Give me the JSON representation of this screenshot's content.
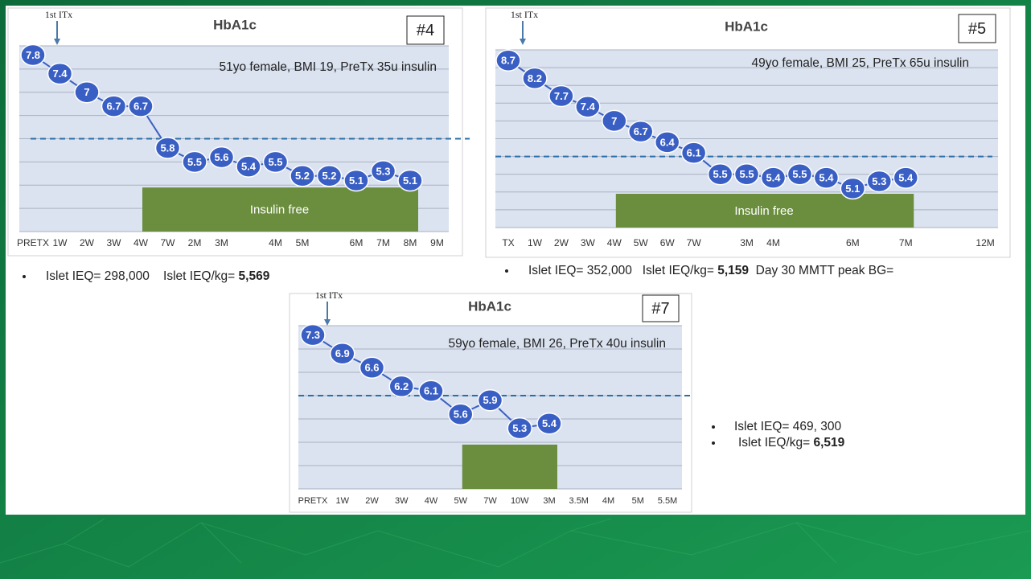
{
  "chart_data": [
    {
      "type": "line",
      "title": "HbA1c",
      "label": "#4",
      "arrow_label": "1st ITx",
      "annotation": "51yo female, BMI 19, PreTx 35u insulin",
      "categories": [
        "PRETX",
        "1W",
        "2W",
        "3W",
        "4W",
        "7W",
        "2M",
        "3M",
        null,
        "4M",
        "5M",
        null,
        "6M",
        "7M",
        "8M",
        "9M"
      ],
      "values": [
        7.8,
        7.4,
        7,
        6.7,
        6.7,
        5.8,
        5.5,
        5.6,
        5.4,
        5.5,
        5.2,
        5.2,
        5.1,
        5.3,
        5.1,
        null
      ],
      "color": "#3a5fc4",
      "ylim": [
        4,
        8
      ],
      "grid_lines": [
        4,
        4.5,
        5,
        5.5,
        6,
        6.5,
        7,
        7.5,
        8
      ],
      "threshold": 6,
      "band": {
        "label": "Insulin free",
        "from": "4W",
        "to": "8M",
        "color": "#6b8e3e"
      },
      "notes": [
        {
          "text": "Islet IEQ= 298,000    Islet IEQ/kg= ",
          "bold": "5,569"
        }
      ]
    },
    {
      "type": "line",
      "title": "HbA1c",
      "label": "#5",
      "arrow_label": "1st ITx",
      "annotation": "49yo female, BMI 25, PreTx 65u insulin",
      "categories": [
        "TX",
        "1W",
        "2W",
        "3W",
        "4W",
        "5W",
        "6W",
        "7W",
        null,
        "3M",
        "4M",
        null,
        null,
        "6M",
        null,
        "7M",
        null,
        null,
        "12M"
      ],
      "values": [
        8.7,
        8.2,
        7.7,
        7.4,
        7,
        6.7,
        6.4,
        6.1,
        5.5,
        5.5,
        5.4,
        5.5,
        5.4,
        5.1,
        5.3,
        5.4,
        null,
        null,
        null
      ],
      "color": "#3a5fc4",
      "ylim": [
        4,
        9
      ],
      "grid_lines": [
        4,
        4.5,
        5,
        5.5,
        6,
        6.5,
        7,
        7.5,
        8,
        8.5,
        9
      ],
      "threshold": 6,
      "band": {
        "label": "Insulin free",
        "from": "4W",
        "to": "7M",
        "color": "#6b8e3e"
      },
      "notes": [
        {
          "text": "Islet IEQ= 352,000   Islet IEQ/kg= ",
          "bold": "5,159",
          "after": "  Day 30 MMTT peak BG="
        }
      ]
    },
    {
      "type": "line",
      "title": "HbA1c",
      "label": "#7",
      "arrow_label": "1st ITx",
      "annotation": "59yo female, BMI 26, PreTx 40u insulin",
      "categories": [
        "PRETX",
        "1W",
        "2W",
        "3W",
        "4W",
        "5W",
        "7W",
        "10W",
        "3M",
        "3.5M",
        "4M",
        "5M",
        "5.5M"
      ],
      "values": [
        7.3,
        6.9,
        6.6,
        6.2,
        6.1,
        5.6,
        5.9,
        5.3,
        5.4,
        null,
        null,
        null,
        null
      ],
      "color": "#3a5fc4",
      "ylim": [
        4,
        7.5
      ],
      "grid_lines": [
        4,
        4.5,
        5,
        5.5,
        6,
        6.5,
        7,
        7.5
      ],
      "threshold": 6,
      "band": {
        "from": "5W",
        "to": "3M",
        "color": "#6b8e3e"
      },
      "notes": [
        {
          "text": "Islet IEQ= 469, 300"
        },
        {
          "text": "Islet IEQ/kg= ",
          "bold": "6,519"
        }
      ]
    }
  ]
}
